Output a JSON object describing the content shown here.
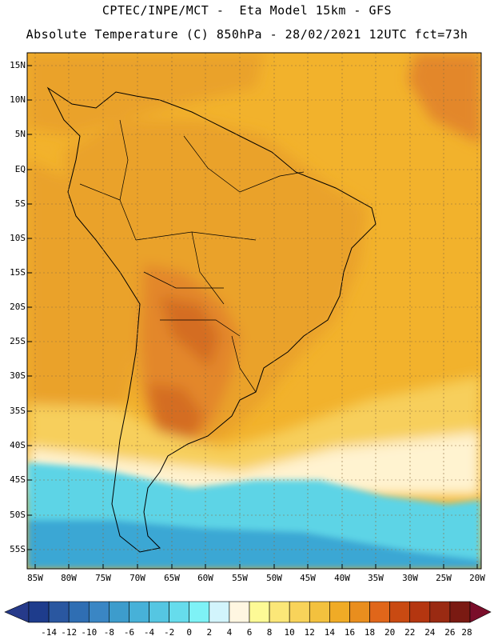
{
  "header": {
    "line1": "CPTEC/INPE/MCT -  Eta Model 15km - GFS",
    "line2": "Absolute Temperature (C) 850hPa - 28/02/2021 12UTC fct=73h"
  },
  "map": {
    "lat_labels": [
      "15N",
      "10N",
      "5N",
      "EQ",
      "5S",
      "10S",
      "15S",
      "20S",
      "25S",
      "30S",
      "35S",
      "40S",
      "45S",
      "50S",
      "55S"
    ],
    "lon_labels": [
      "85W",
      "80W",
      "75W",
      "70W",
      "65W",
      "60W",
      "55W",
      "50W",
      "45W",
      "40W",
      "35W",
      "30W",
      "25W",
      "20W"
    ]
  },
  "colorbar": {
    "labels": [
      "-14",
      "-12",
      "-10",
      "-8",
      "-6",
      "-4",
      "-2",
      "0",
      "2",
      "4",
      "6",
      "8",
      "10",
      "12",
      "14",
      "16",
      "18",
      "20",
      "22",
      "24",
      "26",
      "28"
    ],
    "colors": [
      "#1e3c8c",
      "#2a57a0",
      "#2f6eb3",
      "#3a86c4",
      "#3d9ccc",
      "#47b1d8",
      "#55c6e2",
      "#66dcec",
      "#7ef2f6",
      "#d2f4fc",
      "#fff6e1",
      "#fdfa96",
      "#fbe778",
      "#f8d35a",
      "#f3c13e",
      "#f0ab26",
      "#e98e1e",
      "#e0661a",
      "#c94a12",
      "#b43610",
      "#9a2a12",
      "#7a1a12"
    ],
    "under_color": "#263a8a",
    "over_color": "#7a0e2a"
  },
  "colors": {
    "ocean_warm": "#f2b22c",
    "land_warm": "#eaa22c",
    "land_hot": "#e3872a",
    "land_hottest": "#d46d22",
    "south_cool": "#f7cf5c",
    "south_pale": "#fff3d0",
    "south_cold": "#5dd4e6",
    "south_colder": "#3aa7d4"
  }
}
